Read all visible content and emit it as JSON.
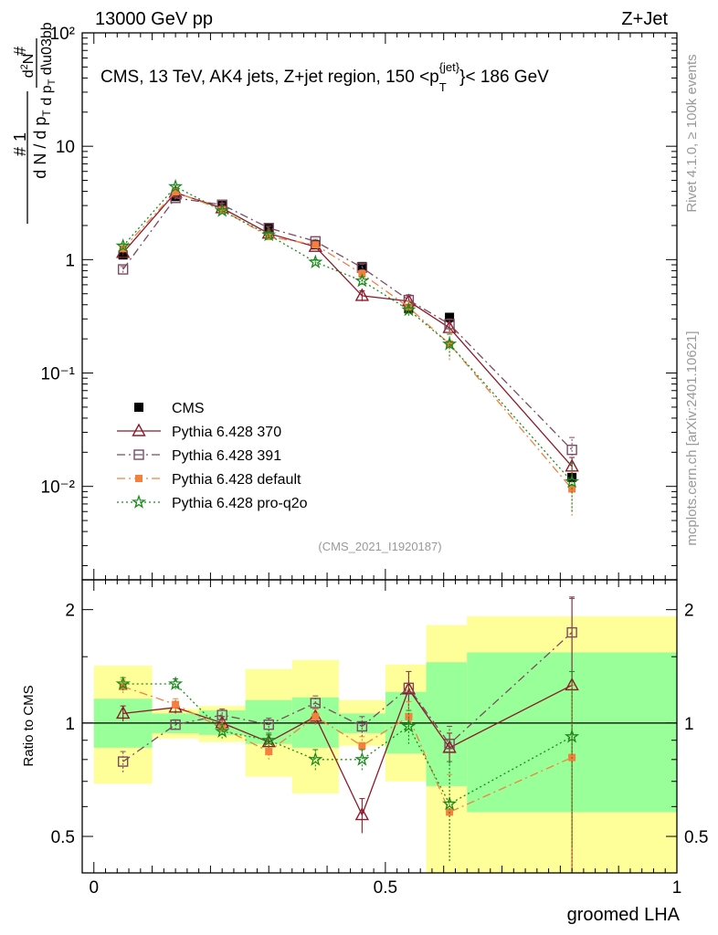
{
  "header": {
    "left": "13000 GeV pp",
    "right": "Z+Jet"
  },
  "side_labels": {
    "rivet": "Rivet 4.1.0, ≥ 100k events",
    "mcplots": "mcplots.cern.ch [arXiv:2401.10621]"
  },
  "colors": {
    "cms": "#000000",
    "p370": "#8b1a2b",
    "p391": "#7b4a60",
    "default": "#f5803e",
    "proq2o": "#1a8a1a",
    "band_inner": "#99ff99",
    "band_outer": "#ffff99"
  },
  "chart_data": [
    {
      "type": "scatter",
      "name": "main",
      "title": "CMS, 13 TeV, AK4 jets, Z+jet region, 150 <p",
      "title_sup": "{jet}",
      "title_sub": "T",
      "title_tail": "}< 186 GeV",
      "ylabel": "1/N dN/dp_T d²N/dp_T dλ",
      "yscale": "log",
      "ylim": [
        0.0015,
        100
      ],
      "xlim": [
        -0.02,
        1.0
      ],
      "yticks": [
        "10⁻²",
        "10⁻¹",
        "1",
        "10",
        "10²"
      ],
      "ytick_values": [
        0.01,
        0.1,
        1,
        10,
        100
      ],
      "watermark": "(CMS_2021_I1920187)",
      "x": [
        0.05,
        0.14,
        0.22,
        0.3,
        0.38,
        0.46,
        0.54,
        0.61,
        0.82
      ],
      "series": [
        {
          "name": "CMS",
          "key": "cms",
          "marker": "square-filled",
          "values": [
            1.1,
            3.6,
            3.0,
            1.9,
            1.35,
            0.87,
            0.37,
            0.31,
            0.012
          ]
        },
        {
          "name": "Pythia 6.428 370",
          "key": "p370",
          "marker": "triangle-open",
          "style": "solid",
          "values": [
            1.15,
            3.9,
            2.85,
            1.7,
            1.3,
            0.48,
            0.43,
            0.25,
            0.015
          ],
          "err": [
            0.06,
            0.12,
            0.1,
            0.08,
            0.06,
            0.05,
            0.05,
            0.03,
            0.003
          ]
        },
        {
          "name": "Pythia 6.428 391",
          "key": "p391",
          "marker": "square-open",
          "style": "dashdot",
          "values": [
            0.82,
            3.5,
            3.05,
            1.9,
            1.45,
            0.85,
            0.44,
            0.27,
            0.021
          ],
          "err": [
            0.05,
            0.1,
            0.1,
            0.07,
            0.06,
            0.06,
            0.05,
            0.03,
            0.006
          ]
        },
        {
          "name": "Pythia 6.428 default",
          "key": "default",
          "marker": "square-filled-small",
          "style": "dashdot",
          "values": [
            1.25,
            3.95,
            2.75,
            1.6,
            1.35,
            0.75,
            0.38,
            0.18,
            0.0095
          ],
          "err": [
            0.06,
            0.12,
            0.09,
            0.07,
            0.06,
            0.06,
            0.05,
            0.05,
            0.004
          ]
        },
        {
          "name": "Pythia 6.428 pro-q2o",
          "key": "proq2o",
          "marker": "star",
          "style": "dotted",
          "values": [
            1.32,
            4.4,
            2.7,
            1.65,
            0.95,
            0.65,
            0.36,
            0.18,
            0.011
          ],
          "err": [
            0.06,
            0.13,
            0.09,
            0.07,
            0.05,
            0.05,
            0.04,
            0.04,
            0.005
          ]
        }
      ]
    },
    {
      "type": "scatter",
      "name": "ratio",
      "ylabel": "Ratio to CMS",
      "xlabel": "groomed LHA",
      "yscale": "log",
      "ylim": [
        0.4,
        2.4
      ],
      "xlim": [
        -0.02,
        1.0
      ],
      "yticks": [
        "0.5",
        "1",
        "2"
      ],
      "ytick_values": [
        0.5,
        1,
        2
      ],
      "xticks": [
        "0",
        "0.5",
        "1"
      ],
      "xtick_values": [
        0,
        0.5,
        1
      ],
      "bins": [
        {
          "lo": 0.0,
          "hi": 0.1,
          "inner": [
            0.86,
            1.16
          ],
          "outer": [
            0.69,
            1.42
          ]
        },
        {
          "lo": 0.1,
          "hi": 0.18,
          "inner": [
            0.94,
            1.06
          ],
          "outer": [
            0.91,
            1.09
          ]
        },
        {
          "lo": 0.18,
          "hi": 0.26,
          "inner": [
            0.93,
            1.08
          ],
          "outer": [
            0.89,
            1.11
          ]
        },
        {
          "lo": 0.26,
          "hi": 0.34,
          "inner": [
            0.88,
            1.15
          ],
          "outer": [
            0.72,
            1.39
          ]
        },
        {
          "lo": 0.34,
          "hi": 0.42,
          "inner": [
            0.86,
            1.17
          ],
          "outer": [
            0.65,
            1.47
          ]
        },
        {
          "lo": 0.42,
          "hi": 0.5,
          "inner": [
            0.94,
            1.06
          ],
          "outer": [
            0.87,
            1.15
          ]
        },
        {
          "lo": 0.5,
          "hi": 0.57,
          "inner": [
            0.83,
            1.21
          ],
          "outer": [
            0.7,
            1.43
          ]
        },
        {
          "lo": 0.57,
          "hi": 0.64,
          "inner": [
            0.68,
            1.45
          ],
          "outer": [
            0.4,
            1.82
          ]
        },
        {
          "lo": 0.64,
          "hi": 1.0,
          "inner": [
            0.58,
            1.54
          ],
          "outer": [
            0.4,
            1.92
          ]
        }
      ],
      "x": [
        0.05,
        0.14,
        0.22,
        0.3,
        0.38,
        0.46,
        0.54,
        0.61,
        0.82
      ],
      "series": [
        {
          "name": "Pythia 6.428 370",
          "key": "p370",
          "marker": "triangle-open",
          "style": "solid",
          "values": [
            1.06,
            1.1,
            1.0,
            0.89,
            1.04,
            0.57,
            1.23,
            0.86,
            1.26
          ],
          "err": [
            0.05,
            0.04,
            0.04,
            0.04,
            0.05,
            0.06,
            0.14,
            0.08,
            0.9
          ]
        },
        {
          "name": "Pythia 6.428 391",
          "key": "p391",
          "marker": "square-open",
          "style": "dashdot",
          "values": [
            0.79,
            0.99,
            1.05,
            0.99,
            1.13,
            0.98,
            1.24,
            0.88,
            1.74
          ],
          "err": [
            0.05,
            0.03,
            0.04,
            0.04,
            0.05,
            0.06,
            0.13,
            0.1,
            0.4
          ]
        },
        {
          "name": "Pythia 6.428 default",
          "key": "default",
          "marker": "square-filled-small",
          "style": "dashdot",
          "values": [
            1.25,
            1.12,
            0.97,
            0.84,
            1.04,
            0.87,
            1.04,
            0.58,
            0.81
          ],
          "err": [
            0.05,
            0.04,
            0.04,
            0.04,
            0.05,
            0.05,
            0.1,
            0.15,
            0.45
          ]
        },
        {
          "name": "Pythia 6.428 pro-q2o",
          "key": "proq2o",
          "marker": "star",
          "style": "dotted",
          "values": [
            1.27,
            1.27,
            0.95,
            0.9,
            0.8,
            0.8,
            0.98,
            0.61,
            0.92
          ],
          "err": [
            0.05,
            0.04,
            0.04,
            0.04,
            0.05,
            0.05,
            0.1,
            0.18,
            0.45
          ]
        }
      ]
    }
  ]
}
